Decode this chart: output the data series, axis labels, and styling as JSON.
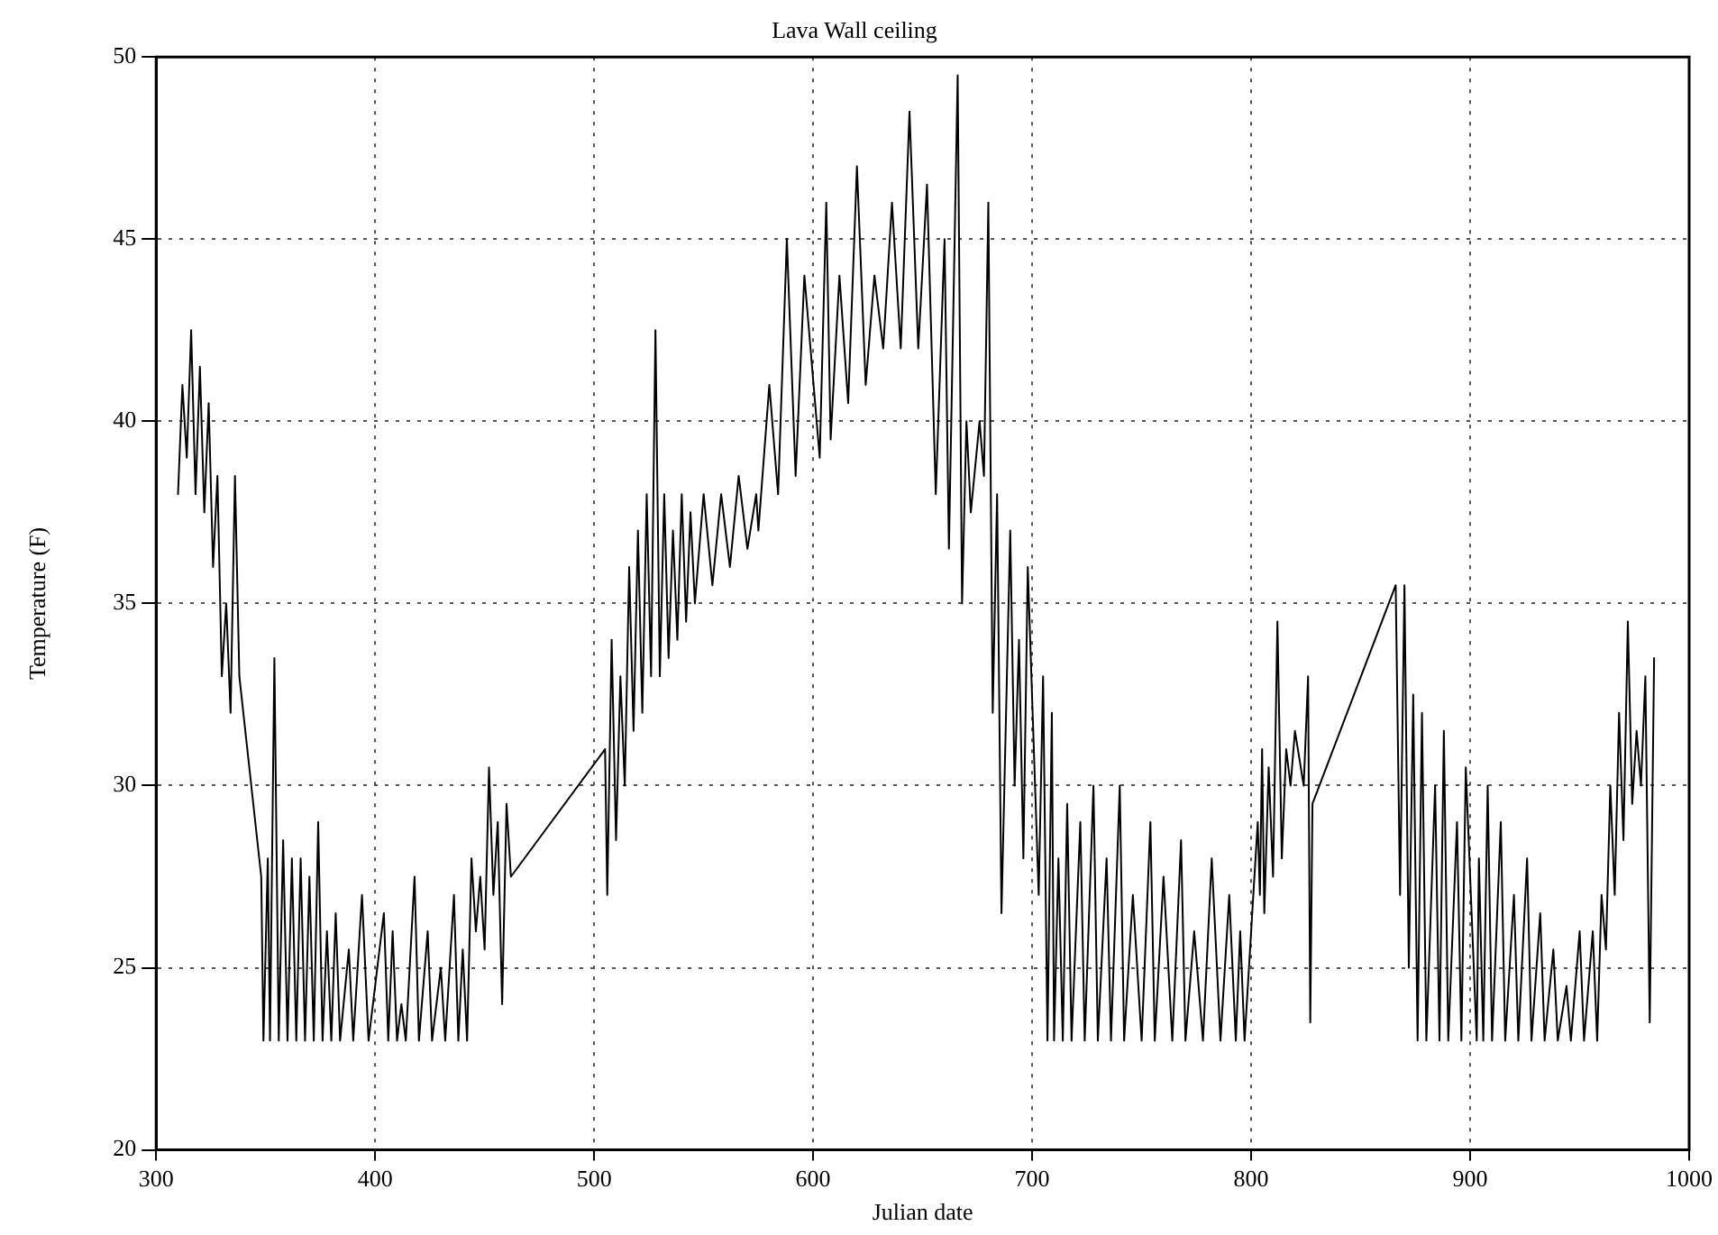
{
  "chart_data": {
    "type": "line",
    "title": "Lava Wall ceiling",
    "xlabel": "Julian date",
    "ylabel": "Temperature (F)",
    "xlim": [
      300,
      1000
    ],
    "xticks": [
      300,
      400,
      500,
      600,
      700,
      800,
      900,
      1000
    ],
    "ylim": [
      20,
      50
    ],
    "yticks": [
      20,
      25,
      30,
      35,
      40,
      45,
      50
    ],
    "grid": true,
    "legend": false,
    "marker": "none",
    "line_style": "solid",
    "series": [
      {
        "color": "#000000",
        "x": [
          310,
          312,
          314,
          316,
          318,
          320,
          322,
          324,
          326,
          328,
          330,
          332,
          334,
          336,
          338,
          348,
          349,
          351,
          352,
          354,
          356,
          358,
          360,
          362,
          364,
          366,
          368,
          370,
          372,
          374,
          376,
          378,
          380,
          382,
          384,
          388,
          390,
          394,
          397,
          404,
          406,
          408,
          410,
          412,
          414,
          418,
          420,
          424,
          426,
          430,
          432,
          436,
          438,
          440,
          442,
          444,
          446,
          448,
          450,
          452,
          454,
          456,
          458,
          460,
          462,
          505,
          506,
          508,
          510,
          512,
          514,
          516,
          518,
          520,
          522,
          524,
          526,
          528,
          530,
          532,
          534,
          536,
          538,
          540,
          542,
          544,
          546,
          550,
          554,
          558,
          562,
          566,
          570,
          574,
          575,
          580,
          584,
          588,
          592,
          596,
          603,
          606,
          608,
          612,
          616,
          620,
          624,
          628,
          632,
          636,
          640,
          644,
          648,
          652,
          656,
          660,
          662,
          666,
          668,
          670,
          672,
          676,
          678,
          680,
          682,
          684,
          686,
          690,
          692,
          694,
          696,
          698,
          703,
          705,
          707,
          709,
          710,
          712,
          714,
          716,
          718,
          722,
          724,
          728,
          730,
          734,
          736,
          740,
          742,
          746,
          750,
          754,
          756,
          760,
          764,
          768,
          770,
          774,
          778,
          782,
          786,
          790,
          793,
          795,
          797,
          803,
          804,
          805,
          806,
          808,
          810,
          812,
          814,
          816,
          818,
          820,
          824,
          826,
          827,
          828,
          866,
          868,
          870,
          872,
          874,
          876,
          878,
          880,
          884,
          886,
          888,
          890,
          894,
          896,
          898,
          903,
          904,
          906,
          908,
          910,
          914,
          916,
          920,
          922,
          926,
          928,
          932,
          934,
          938,
          940,
          944,
          946,
          950,
          952,
          956,
          958,
          960,
          962,
          964,
          966,
          968,
          970,
          972,
          974,
          976,
          978,
          980,
          982,
          984
        ],
        "values": [
          38,
          41,
          39,
          42.5,
          38,
          41.5,
          37.5,
          40.5,
          36,
          38.5,
          33,
          35,
          32,
          38.5,
          33,
          27.5,
          23,
          28,
          23,
          33.5,
          23,
          28.5,
          23,
          28,
          23,
          28,
          23,
          27.5,
          23,
          29,
          23,
          26,
          23,
          26.5,
          23,
          25.5,
          23,
          27,
          23,
          26.5,
          23,
          26,
          23,
          24,
          23,
          27.5,
          23,
          26,
          23,
          25,
          23,
          27,
          23,
          25.5,
          23,
          28,
          26,
          27.5,
          25.5,
          30.5,
          27,
          29,
          24,
          29.5,
          27.5,
          31,
          27,
          34,
          28.5,
          33,
          30,
          36,
          31.5,
          37,
          32,
          38,
          33,
          42.5,
          33,
          38,
          33.5,
          37,
          34,
          38,
          34.5,
          37.5,
          35,
          38,
          35.5,
          38,
          36,
          38.5,
          36.5,
          38,
          37,
          41,
          38,
          45,
          38.5,
          44,
          39,
          46,
          39.5,
          44,
          40.5,
          47,
          41,
          44,
          42,
          46,
          42,
          48.5,
          42,
          46.5,
          38,
          45,
          36.5,
          49.5,
          35,
          40,
          37.5,
          40,
          38.5,
          46,
          32,
          38,
          26.5,
          37,
          30,
          34,
          28,
          36,
          27,
          33,
          23,
          32,
          23,
          28,
          23,
          29.5,
          23,
          29,
          23,
          30,
          23,
          28,
          23,
          30,
          23,
          27,
          23,
          29,
          23,
          27.5,
          23,
          28.5,
          23,
          26,
          23,
          28,
          23,
          27,
          23,
          26,
          23,
          29,
          27,
          31,
          26.5,
          30.5,
          27.5,
          34.5,
          28,
          31,
          30,
          31.5,
          30,
          33,
          23.5,
          29.5,
          35.5,
          27,
          35.5,
          25,
          32.5,
          23,
          32,
          23,
          30,
          23,
          31.5,
          23,
          29,
          23,
          30.5,
          23,
          28,
          23,
          30,
          23,
          29,
          23,
          27,
          23,
          28,
          23,
          26.5,
          23,
          25.5,
          23,
          24.5,
          23,
          26,
          23,
          26,
          23,
          27,
          25.5,
          30,
          27,
          32,
          28.5,
          34.5,
          29.5,
          31.5,
          30,
          33,
          23.5,
          33.5
        ]
      }
    ]
  }
}
